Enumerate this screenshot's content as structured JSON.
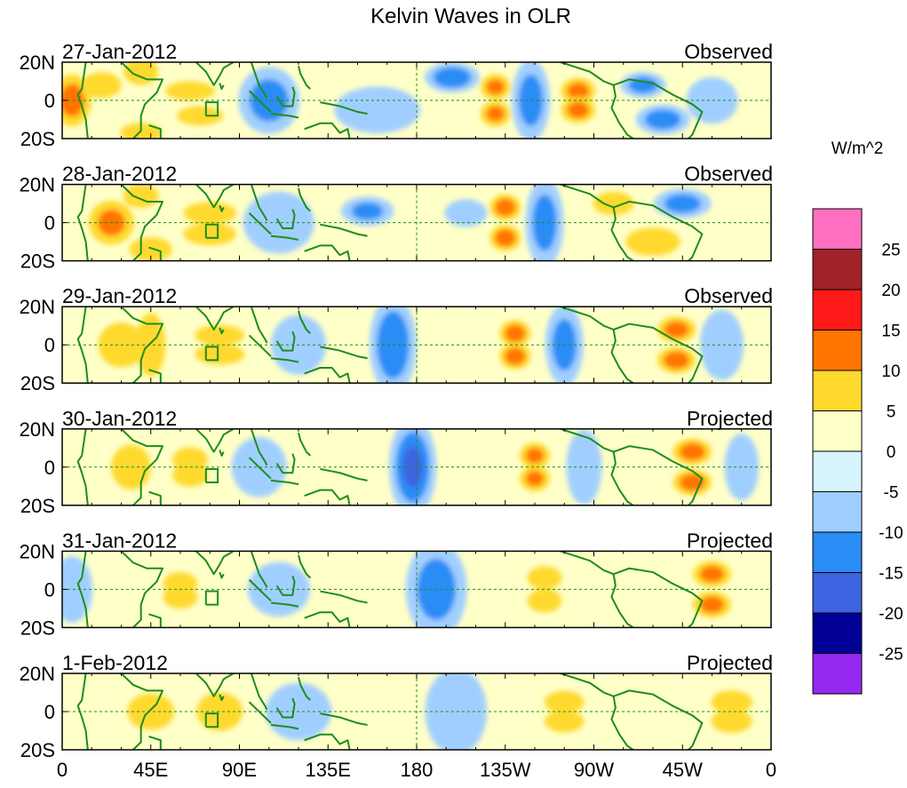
{
  "chart_data": {
    "type": "heatmap",
    "title": "Kelvin Waves in OLR",
    "xlabel": "",
    "ylabel": "",
    "x_ticks": [
      "0",
      "45E",
      "90E",
      "135E",
      "180",
      "135W",
      "90W",
      "45W",
      "0"
    ],
    "x_range_deg_east": [
      0,
      360
    ],
    "y_ticks": [
      "20N",
      "0",
      "20S"
    ],
    "y_range_lat": [
      -20,
      20
    ],
    "colorbar": {
      "unit": "W/m^2",
      "labels": [
        "25",
        "20",
        "15",
        "10",
        "5",
        "0",
        "-5",
        "-10",
        "-15",
        "-20",
        "-25"
      ],
      "colors": [
        "#ff70c0",
        "#a0232a",
        "#ff1a1a",
        "#ff7500",
        "#ffd92e",
        "#ffffc8",
        "#d6f5ff",
        "#a0cfff",
        "#2a8cf5",
        "#3c64e0",
        "#000096",
        "#9628f0"
      ]
    },
    "panels": [
      {
        "date": "27-Jan-2012",
        "status": "Observed",
        "blobs": [
          {
            "lon": 5,
            "lat": 0,
            "w": 10,
            "h": 14,
            "v": 12
          },
          {
            "lon": 20,
            "lat": 8,
            "w": 12,
            "h": 8,
            "v": 6
          },
          {
            "lon": 40,
            "lat": 15,
            "w": 10,
            "h": 8,
            "v": 7
          },
          {
            "lon": 40,
            "lat": -17,
            "w": 12,
            "h": 6,
            "v": 7
          },
          {
            "lon": 65,
            "lat": 5,
            "w": 15,
            "h": 6,
            "v": 6
          },
          {
            "lon": 70,
            "lat": -8,
            "w": 14,
            "h": 6,
            "v": 6
          },
          {
            "lon": 105,
            "lat": 0,
            "w": 16,
            "h": 18,
            "v": -12
          },
          {
            "lon": 160,
            "lat": -5,
            "w": 25,
            "h": 14,
            "v": -7
          },
          {
            "lon": 198,
            "lat": 12,
            "w": 14,
            "h": 8,
            "v": -14
          },
          {
            "lon": 220,
            "lat": 7,
            "w": 8,
            "h": 7,
            "v": 11
          },
          {
            "lon": 220,
            "lat": -7,
            "w": 8,
            "h": 7,
            "v": 11
          },
          {
            "lon": 238,
            "lat": 0,
            "w": 10,
            "h": 22,
            "v": -12
          },
          {
            "lon": 262,
            "lat": 5,
            "w": 9,
            "h": 7,
            "v": 12
          },
          {
            "lon": 262,
            "lat": -5,
            "w": 9,
            "h": 7,
            "v": 12
          },
          {
            "lon": 295,
            "lat": 8,
            "w": 12,
            "h": 7,
            "v": -12
          },
          {
            "lon": 305,
            "lat": -10,
            "w": 14,
            "h": 8,
            "v": -13
          },
          {
            "lon": 330,
            "lat": 0,
            "w": 15,
            "h": 14,
            "v": -7
          }
        ]
      },
      {
        "date": "28-Jan-2012",
        "status": "Observed",
        "blobs": [
          {
            "lon": 25,
            "lat": 0,
            "w": 12,
            "h": 12,
            "v": 11
          },
          {
            "lon": 40,
            "lat": 14,
            "w": 10,
            "h": 7,
            "v": 8
          },
          {
            "lon": 45,
            "lat": -14,
            "w": 12,
            "h": 7,
            "v": 8
          },
          {
            "lon": 75,
            "lat": 5,
            "w": 16,
            "h": 7,
            "v": 6
          },
          {
            "lon": 75,
            "lat": -6,
            "w": 16,
            "h": 7,
            "v": 6
          },
          {
            "lon": 110,
            "lat": 0,
            "w": 20,
            "h": 18,
            "v": -8
          },
          {
            "lon": 155,
            "lat": 6,
            "w": 14,
            "h": 8,
            "v": -11
          },
          {
            "lon": 205,
            "lat": 5,
            "w": 12,
            "h": 8,
            "v": -8
          },
          {
            "lon": 225,
            "lat": 8,
            "w": 8,
            "h": 7,
            "v": 13
          },
          {
            "lon": 225,
            "lat": -8,
            "w": 8,
            "h": 7,
            "v": 13
          },
          {
            "lon": 245,
            "lat": 0,
            "w": 10,
            "h": 24,
            "v": -12
          },
          {
            "lon": 280,
            "lat": 10,
            "w": 12,
            "h": 7,
            "v": 7
          },
          {
            "lon": 315,
            "lat": 10,
            "w": 15,
            "h": 8,
            "v": -12
          },
          {
            "lon": 300,
            "lat": -10,
            "w": 15,
            "h": 8,
            "v": 9
          }
        ]
      },
      {
        "date": "29-Jan-2012",
        "status": "Observed",
        "blobs": [
          {
            "lon": 30,
            "lat": 0,
            "w": 14,
            "h": 14,
            "v": 6
          },
          {
            "lon": 45,
            "lat": 0,
            "w": 8,
            "h": 18,
            "v": 9
          },
          {
            "lon": 80,
            "lat": 5,
            "w": 14,
            "h": 6,
            "v": 8
          },
          {
            "lon": 80,
            "lat": -5,
            "w": 14,
            "h": 6,
            "v": 8
          },
          {
            "lon": 120,
            "lat": 0,
            "w": 16,
            "h": 18,
            "v": -7
          },
          {
            "lon": 168,
            "lat": 0,
            "w": 12,
            "h": 26,
            "v": -14
          },
          {
            "lon": 230,
            "lat": 6,
            "w": 8,
            "h": 7,
            "v": 13
          },
          {
            "lon": 230,
            "lat": -6,
            "w": 8,
            "h": 7,
            "v": 13
          },
          {
            "lon": 255,
            "lat": 0,
            "w": 10,
            "h": 22,
            "v": -12
          },
          {
            "lon": 312,
            "lat": 8,
            "w": 10,
            "h": 7,
            "v": 12
          },
          {
            "lon": 312,
            "lat": -8,
            "w": 10,
            "h": 7,
            "v": 13
          },
          {
            "lon": 335,
            "lat": 0,
            "w": 12,
            "h": 20,
            "v": -9
          }
        ]
      },
      {
        "date": "30-Jan-2012",
        "status": "Projected",
        "blobs": [
          {
            "lon": 35,
            "lat": 0,
            "w": 12,
            "h": 14,
            "v": 6
          },
          {
            "lon": 65,
            "lat": 4,
            "w": 10,
            "h": 7,
            "v": 8
          },
          {
            "lon": 65,
            "lat": -4,
            "w": 10,
            "h": 7,
            "v": 8
          },
          {
            "lon": 100,
            "lat": 0,
            "w": 16,
            "h": 18,
            "v": -7
          },
          {
            "lon": 178,
            "lat": 0,
            "w": 12,
            "h": 26,
            "v": -15
          },
          {
            "lon": 240,
            "lat": 6,
            "w": 8,
            "h": 7,
            "v": 11
          },
          {
            "lon": 240,
            "lat": -6,
            "w": 8,
            "h": 7,
            "v": 11
          },
          {
            "lon": 265,
            "lat": 0,
            "w": 10,
            "h": 22,
            "v": -8
          },
          {
            "lon": 320,
            "lat": 8,
            "w": 10,
            "h": 7,
            "v": 13
          },
          {
            "lon": 320,
            "lat": -8,
            "w": 10,
            "h": 7,
            "v": 13
          },
          {
            "lon": 345,
            "lat": 0,
            "w": 10,
            "h": 20,
            "v": -7
          }
        ]
      },
      {
        "date": "31-Jan-2012",
        "status": "Projected",
        "blobs": [
          {
            "lon": 5,
            "lat": 0,
            "w": 12,
            "h": 20,
            "v": -7
          },
          {
            "lon": 60,
            "lat": 3,
            "w": 10,
            "h": 7,
            "v": 7
          },
          {
            "lon": 60,
            "lat": -4,
            "w": 10,
            "h": 7,
            "v": 7
          },
          {
            "lon": 110,
            "lat": 0,
            "w": 20,
            "h": 18,
            "v": -5
          },
          {
            "lon": 190,
            "lat": 0,
            "w": 16,
            "h": 26,
            "v": -12
          },
          {
            "lon": 245,
            "lat": 6,
            "w": 10,
            "h": 7,
            "v": 7
          },
          {
            "lon": 245,
            "lat": -6,
            "w": 10,
            "h": 7,
            "v": 7
          },
          {
            "lon": 330,
            "lat": 8,
            "w": 10,
            "h": 7,
            "v": 12
          },
          {
            "lon": 330,
            "lat": -8,
            "w": 10,
            "h": 7,
            "v": 12
          }
        ]
      },
      {
        "date": "1-Feb-2012",
        "status": "Projected",
        "blobs": [
          {
            "lon": 45,
            "lat": 0,
            "w": 15,
            "h": 12,
            "v": 5
          },
          {
            "lon": 80,
            "lat": 0,
            "w": 14,
            "h": 12,
            "v": 6
          },
          {
            "lon": 120,
            "lat": 0,
            "w": 20,
            "h": 18,
            "v": -6
          },
          {
            "lon": 200,
            "lat": 0,
            "w": 18,
            "h": 26,
            "v": -7
          },
          {
            "lon": 255,
            "lat": 5,
            "w": 12,
            "h": 7,
            "v": 6
          },
          {
            "lon": 255,
            "lat": -5,
            "w": 12,
            "h": 7,
            "v": 6
          },
          {
            "lon": 340,
            "lat": 5,
            "w": 12,
            "h": 7,
            "v": 7
          },
          {
            "lon": 340,
            "lat": -5,
            "w": 12,
            "h": 7,
            "v": 7
          }
        ]
      }
    ]
  }
}
